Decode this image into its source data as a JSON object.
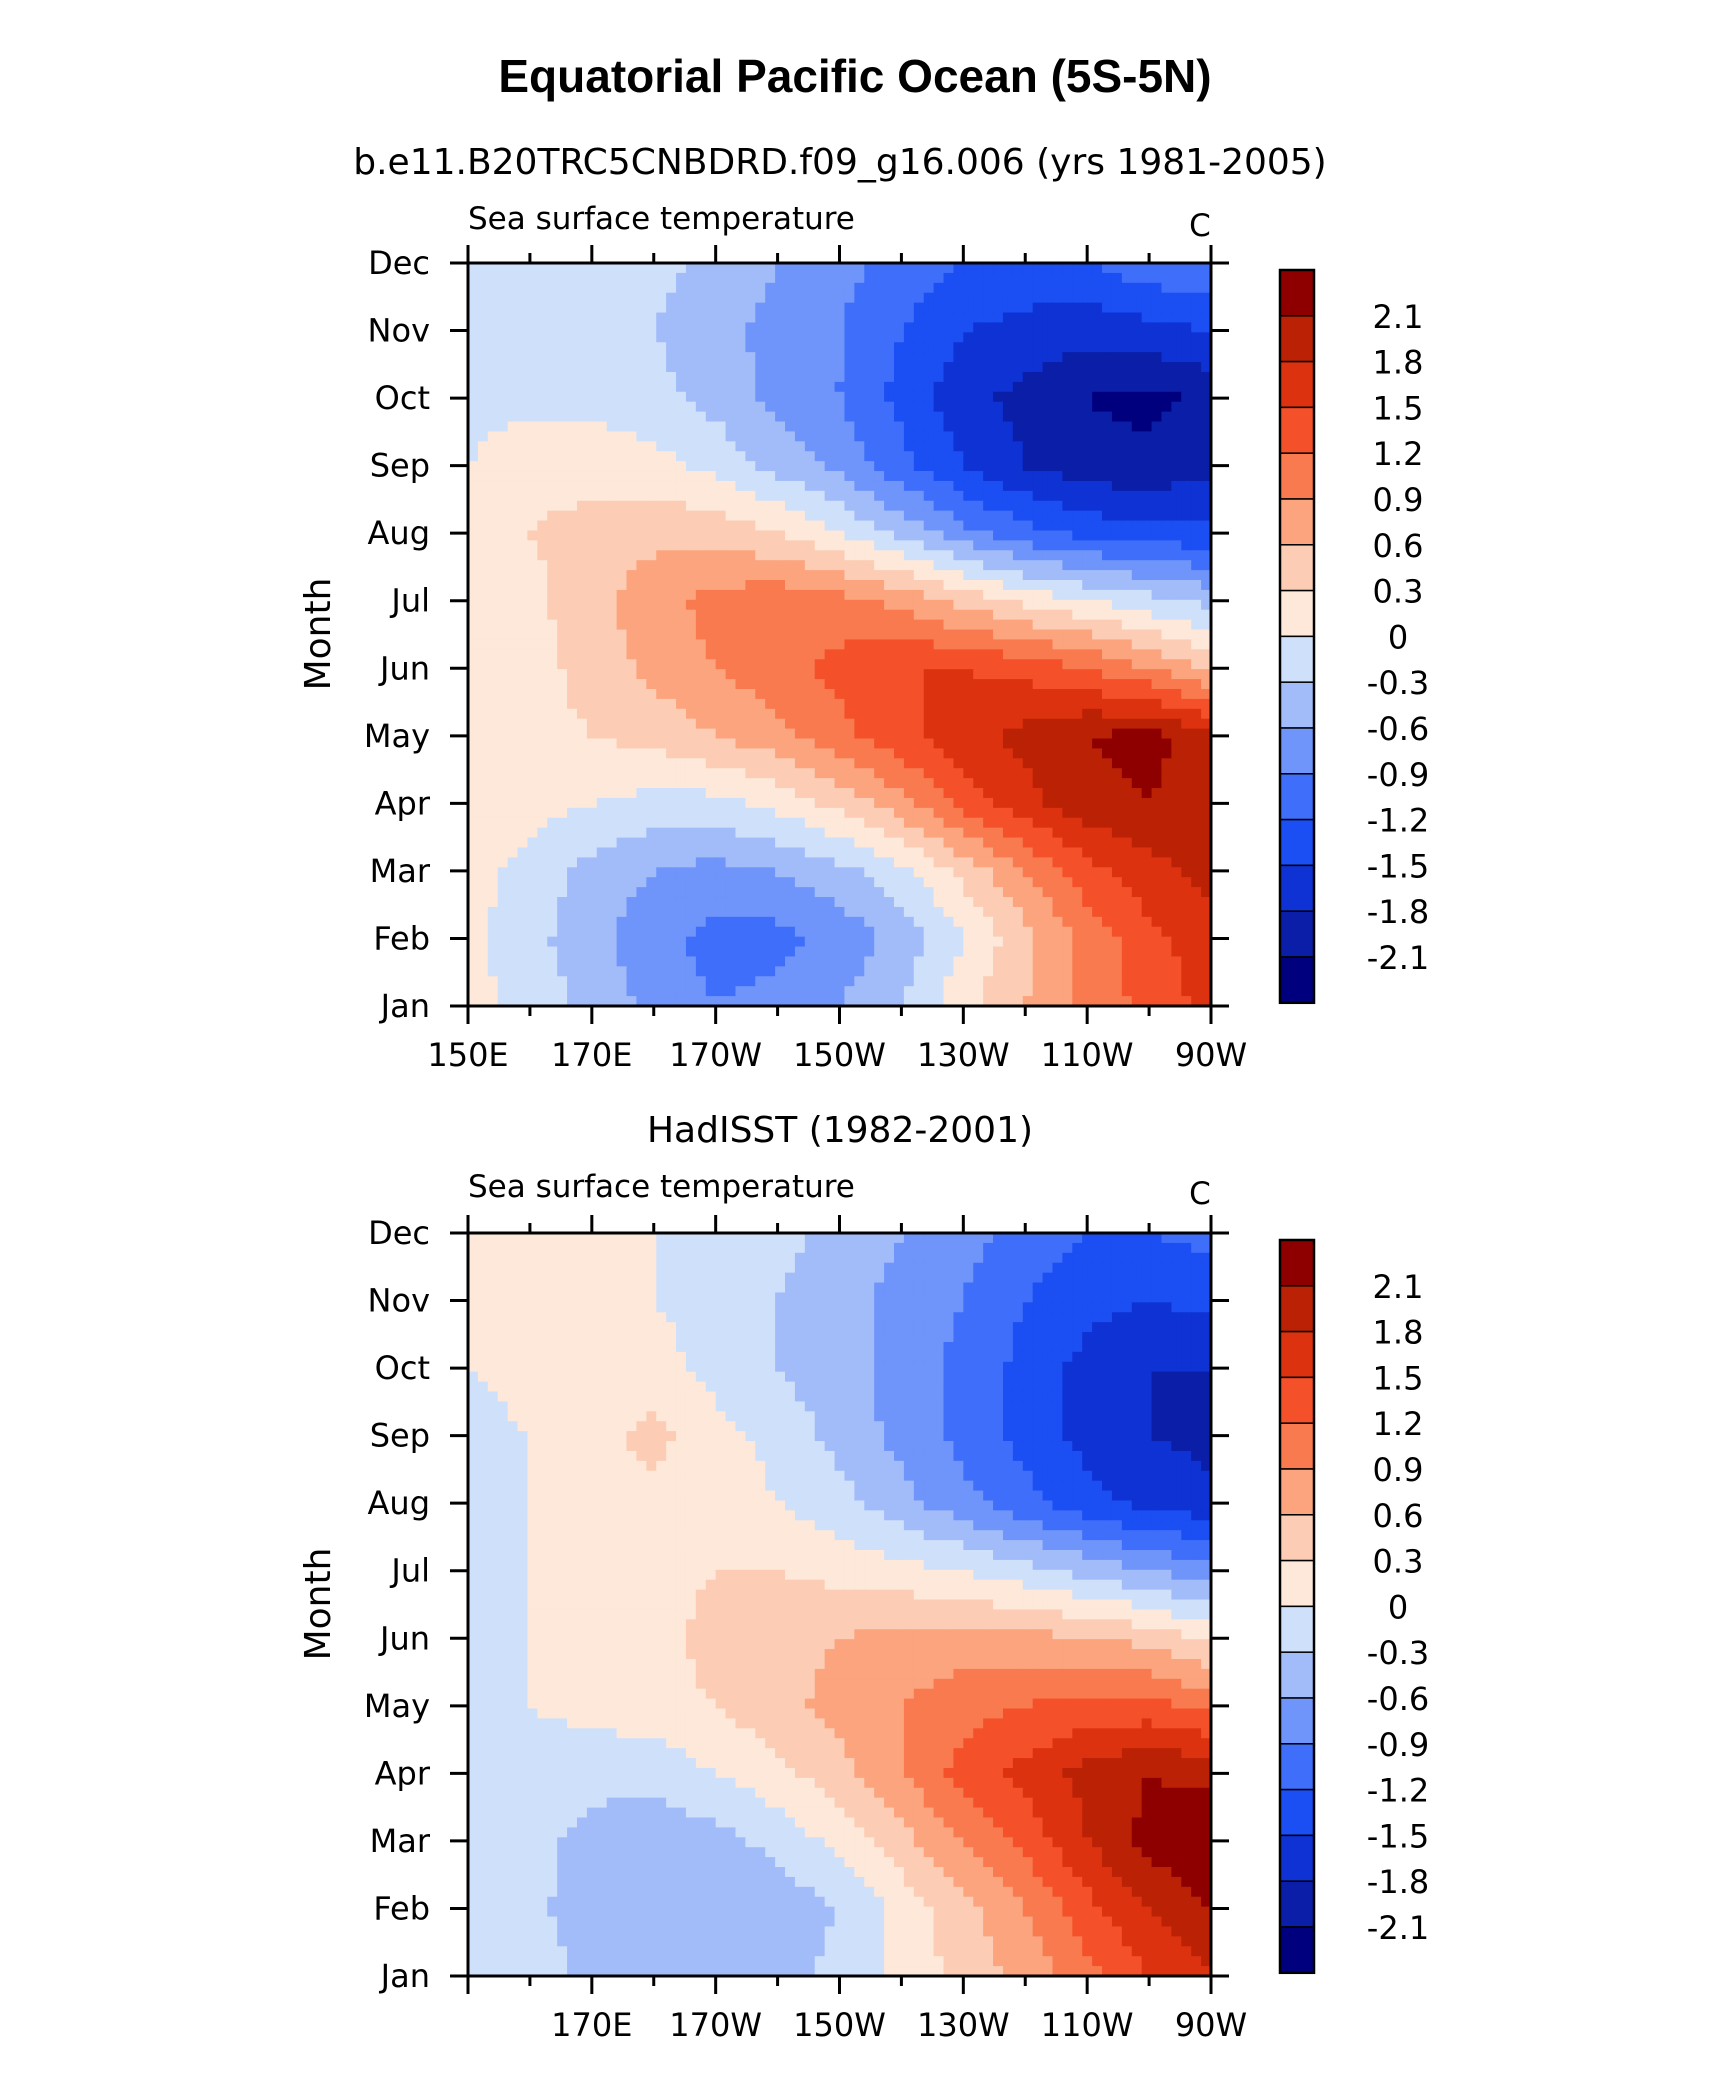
{
  "figure": {
    "title": "Equatorial Pacific Ocean (5S-5N)"
  },
  "colors": {
    "levels": [
      "#00007f",
      "#0a1ea8",
      "#0e32d3",
      "#1b4ef3",
      "#3f6ffa",
      "#6f95fb",
      "#a2bcfa",
      "#cfe0fb",
      "#fde8d9",
      "#fccdb4",
      "#fba47e",
      "#f97a4f",
      "#f4512a",
      "#dd3210",
      "#bb2205",
      "#8e0000"
    ]
  },
  "chart_data": [
    {
      "type": "heatmap",
      "title": "b.e11.B20TRC5CNBDRD.f09_g16.006 (yrs 1981-2005)",
      "left_label": "Sea surface temperature",
      "units": "C",
      "ylabel": "Month",
      "xlabel": "",
      "xlim": [
        150,
        270
      ],
      "x_tick_values": [
        150,
        170,
        190,
        210,
        230,
        250,
        270
      ],
      "x_tick_labels": [
        "150E",
        "170E",
        "170W",
        "150W",
        "130W",
        "110W",
        "90W"
      ],
      "y_tick_labels": [
        "Jan",
        "Feb",
        "Mar",
        "Apr",
        "May",
        "Jun",
        "Jul",
        "Aug",
        "Sep",
        "Oct",
        "Nov",
        "Dec"
      ],
      "colorbar_levels": [
        "2.1",
        "1.8",
        "1.5",
        "1.2",
        "0.9",
        "0.6",
        "0.3",
        "0",
        "-0.3",
        "-0.6",
        "-0.9",
        "-1.2",
        "-1.5",
        "-1.8",
        "-2.1"
      ],
      "field": {
        "x": [
          150,
          160,
          170,
          180,
          190,
          200,
          210,
          220,
          230,
          240,
          250,
          260,
          270
        ],
        "months": [
          "Jan",
          "Feb",
          "Mar",
          "Apr",
          "May",
          "Jun",
          "Jul",
          "Aug",
          "Sep",
          "Oct",
          "Nov",
          "Dec"
        ],
        "values": [
          [
            0.1,
            -0.1,
            -0.4,
            -0.7,
            -0.9,
            -0.8,
            -0.6,
            -0.3,
            0.2,
            0.6,
            1.0,
            1.3,
            1.6
          ],
          [
            0.1,
            -0.2,
            -0.5,
            -0.8,
            -1.0,
            -1.0,
            -0.8,
            -0.5,
            0.0,
            0.5,
            1.0,
            1.4,
            1.7
          ],
          [
            0.1,
            -0.1,
            -0.4,
            -0.6,
            -0.7,
            -0.6,
            -0.4,
            -0.1,
            0.4,
            0.9,
            1.4,
            1.7,
            1.9
          ],
          [
            0.2,
            0.1,
            0.0,
            -0.1,
            -0.1,
            0.1,
            0.4,
            0.8,
            1.3,
            1.7,
            2.0,
            2.1,
            2.0
          ],
          [
            0.2,
            0.2,
            0.3,
            0.4,
            0.6,
            0.8,
            1.1,
            1.4,
            1.7,
            1.9,
            2.1,
            2.2,
            1.9
          ],
          [
            0.2,
            0.2,
            0.4,
            0.7,
            0.9,
            1.1,
            1.3,
            1.5,
            1.5,
            1.4,
            1.2,
            0.9,
            0.5
          ],
          [
            0.1,
            0.2,
            0.5,
            0.8,
            1.0,
            1.1,
            1.0,
            0.8,
            0.5,
            0.2,
            0.0,
            -0.2,
            -0.4
          ],
          [
            0.1,
            0.3,
            0.4,
            0.5,
            0.5,
            0.3,
            0.0,
            -0.4,
            -0.8,
            -1.1,
            -1.3,
            -1.4,
            -1.4
          ],
          [
            0.0,
            0.2,
            0.2,
            0.1,
            -0.1,
            -0.4,
            -0.7,
            -1.1,
            -1.5,
            -1.8,
            -2.0,
            -2.0,
            -1.9
          ],
          [
            -0.1,
            -0.1,
            -0.1,
            -0.2,
            -0.4,
            -0.7,
            -0.9,
            -1.3,
            -1.7,
            -1.9,
            -2.1,
            -2.2,
            -2.0
          ],
          [
            -0.1,
            -0.1,
            -0.2,
            -0.3,
            -0.5,
            -0.7,
            -0.9,
            -1.2,
            -1.5,
            -1.6,
            -1.7,
            -1.6,
            -1.5
          ],
          [
            0.0,
            -0.1,
            -0.1,
            -0.2,
            -0.4,
            -0.6,
            -0.8,
            -1.0,
            -1.2,
            -1.3,
            -1.2,
            -1.0,
            -0.9
          ]
        ]
      }
    },
    {
      "type": "heatmap",
      "title": "HadISST (1982-2001)",
      "left_label": "Sea surface temperature",
      "units": "C",
      "ylabel": "Month",
      "xlabel": "",
      "xlim": [
        150,
        270
      ],
      "x_tick_values": [
        170,
        190,
        210,
        230,
        250,
        270
      ],
      "x_tick_labels": [
        "170E",
        "170W",
        "150W",
        "130W",
        "110W",
        "90W"
      ],
      "y_tick_labels": [
        "Jan",
        "Feb",
        "Mar",
        "Apr",
        "May",
        "Jun",
        "Jul",
        "Aug",
        "Sep",
        "Oct",
        "Nov",
        "Dec"
      ],
      "colorbar_levels": [
        "2.1",
        "1.8",
        "1.5",
        "1.2",
        "0.9",
        "0.6",
        "0.3",
        "0",
        "-0.3",
        "-0.6",
        "-0.9",
        "-1.2",
        "-1.5",
        "-1.8",
        "-2.1"
      ],
      "field": {
        "x": [
          150,
          160,
          170,
          180,
          190,
          200,
          210,
          220,
          230,
          240,
          250,
          260,
          270
        ],
        "months": [
          "Jan",
          "Feb",
          "Mar",
          "Apr",
          "May",
          "Jun",
          "Jul",
          "Aug",
          "Sep",
          "Oct",
          "Nov",
          "Dec"
        ],
        "values": [
          [
            0.0,
            -0.1,
            -0.4,
            -0.5,
            -0.5,
            -0.4,
            -0.2,
            0.1,
            0.4,
            0.7,
            1.1,
            1.5,
            1.8
          ],
          [
            -0.1,
            -0.2,
            -0.5,
            -0.6,
            -0.6,
            -0.5,
            -0.3,
            0.1,
            0.5,
            0.9,
            1.4,
            1.8,
            2.1
          ],
          [
            -0.1,
            -0.2,
            -0.4,
            -0.5,
            -0.4,
            -0.2,
            0.1,
            0.5,
            0.9,
            1.3,
            1.8,
            2.2,
            2.4
          ],
          [
            -0.1,
            -0.1,
            -0.2,
            -0.2,
            0.0,
            0.2,
            0.5,
            0.9,
            1.3,
            1.6,
            1.9,
            2.1,
            2.0
          ],
          [
            -0.1,
            0.0,
            0.1,
            0.2,
            0.3,
            0.5,
            0.7,
            0.9,
            1.1,
            1.2,
            1.3,
            1.3,
            1.1
          ],
          [
            -0.1,
            0.0,
            0.1,
            0.2,
            0.4,
            0.5,
            0.6,
            0.7,
            0.7,
            0.7,
            0.6,
            0.5,
            0.2
          ],
          [
            -0.1,
            0.0,
            0.1,
            0.2,
            0.3,
            0.3,
            0.2,
            0.1,
            0.0,
            -0.2,
            -0.4,
            -0.6,
            -0.8
          ],
          [
            -0.2,
            0.0,
            0.1,
            0.2,
            0.2,
            0.0,
            -0.2,
            -0.5,
            -0.8,
            -1.1,
            -1.4,
            -1.6,
            -1.7
          ],
          [
            -0.1,
            0.0,
            0.2,
            0.4,
            0.1,
            -0.1,
            -0.4,
            -0.7,
            -1.0,
            -1.3,
            -1.6,
            -1.8,
            -1.9
          ],
          [
            0.0,
            0.1,
            0.1,
            0.1,
            -0.1,
            -0.3,
            -0.5,
            -0.7,
            -1.0,
            -1.3,
            -1.6,
            -1.8,
            -1.8
          ],
          [
            0.1,
            0.1,
            0.1,
            0.0,
            -0.1,
            -0.3,
            -0.5,
            -0.7,
            -0.9,
            -1.2,
            -1.4,
            -1.5,
            -1.4
          ],
          [
            0.1,
            0.1,
            0.1,
            0.0,
            -0.1,
            -0.2,
            -0.4,
            -0.6,
            -0.8,
            -1.0,
            -1.2,
            -1.2,
            -1.1
          ]
        ]
      }
    }
  ]
}
